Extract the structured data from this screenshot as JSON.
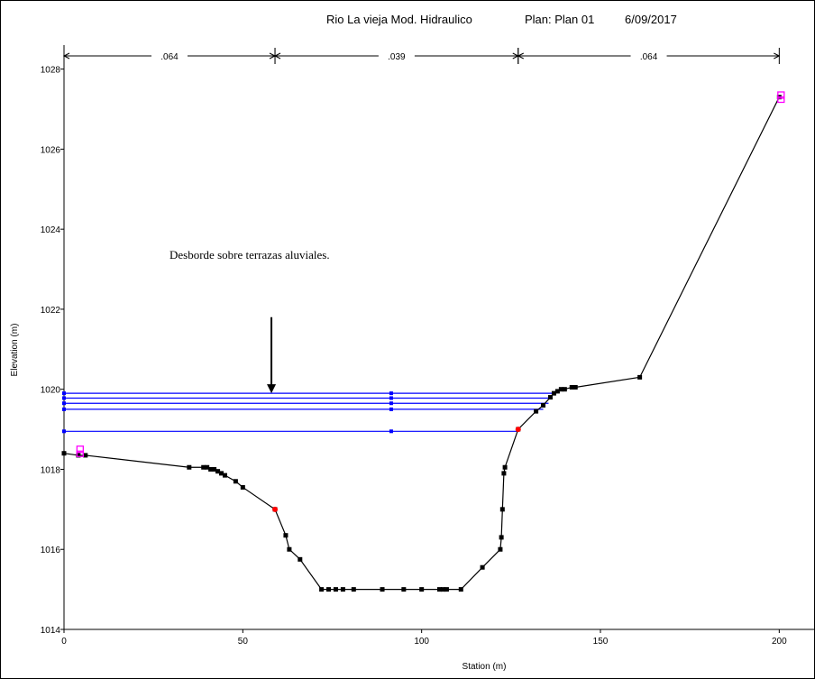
{
  "chart_data": {
    "type": "line",
    "title": "Rio La vieja Mod. Hidraulico",
    "plan": "Plan: Plan 01",
    "date": "6/09/2017",
    "xlabel": "Station (m)",
    "ylabel": "Elevation (m)",
    "xlim": [
      0,
      210
    ],
    "ylim": [
      1014,
      1028.6
    ],
    "x_ticks": [
      0,
      50,
      100,
      150,
      200
    ],
    "y_ticks": [
      1014,
      1016,
      1018,
      1020,
      1022,
      1024,
      1026,
      1028
    ],
    "grid": false,
    "mannings_n": [
      {
        "label": ".064",
        "from": 0,
        "to": 59
      },
      {
        "label": ".039",
        "from": 59,
        "to": 127
      },
      {
        "label": ".064",
        "from": 127,
        "to": 200
      }
    ],
    "ground": {
      "x": [
        0,
        4,
        6,
        35,
        39,
        40,
        41,
        42,
        43,
        44,
        45,
        48,
        50,
        59,
        62,
        63,
        66,
        72,
        74,
        76,
        78,
        81,
        89,
        95,
        100,
        105,
        106,
        107,
        111,
        117,
        122,
        122.3,
        122.6,
        123,
        123.3,
        127,
        132,
        134,
        136,
        137,
        138,
        139,
        140,
        142,
        143,
        161,
        200
      ],
      "y": [
        1018.4,
        1018.35,
        1018.35,
        1018.05,
        1018.05,
        1018.05,
        1018.0,
        1018.0,
        1017.95,
        1017.9,
        1017.85,
        1017.7,
        1017.55,
        1017.0,
        1016.35,
        1016.0,
        1015.75,
        1015.0,
        1015.0,
        1015.0,
        1015.0,
        1015.0,
        1015.0,
        1015.0,
        1015.0,
        1015.0,
        1015.0,
        1015.0,
        1015.0,
        1015.55,
        1016.0,
        1016.3,
        1017.0,
        1017.9,
        1018.05,
        1019.0,
        1019.45,
        1019.6,
        1019.8,
        1019.9,
        1019.95,
        1020.0,
        1020.0,
        1020.05,
        1020.05,
        1020.3,
        1027.3
      ]
    },
    "bank_stations": [
      {
        "x": 59,
        "y": 1017.0
      },
      {
        "x": 127,
        "y": 1019.0
      }
    ],
    "levee_markers": [
      {
        "x": 4.5,
        "y": 1018.5
      },
      {
        "x": 200.5,
        "y": 1027.35
      }
    ],
    "water_surfaces": [
      {
        "elevation": 1019.9,
        "x_end": 137.5
      },
      {
        "elevation": 1019.78,
        "x_end": 136.5
      },
      {
        "elevation": 1019.65,
        "x_end": 135.5
      },
      {
        "elevation": 1019.5,
        "x_end": 134
      },
      {
        "elevation": 1018.95,
        "x_end": 127
      }
    ],
    "ws_marker_x": 91.5,
    "annotation": {
      "text": "Desborde sobre terrazas aluviales.",
      "arrow_x": 58,
      "arrow_from_y": 1021.8,
      "arrow_to_y": 1019.9
    },
    "colors": {
      "ground": "#000000",
      "water": "#0000ff",
      "bank": "#ff0000",
      "levee": "#ff00ff"
    }
  }
}
